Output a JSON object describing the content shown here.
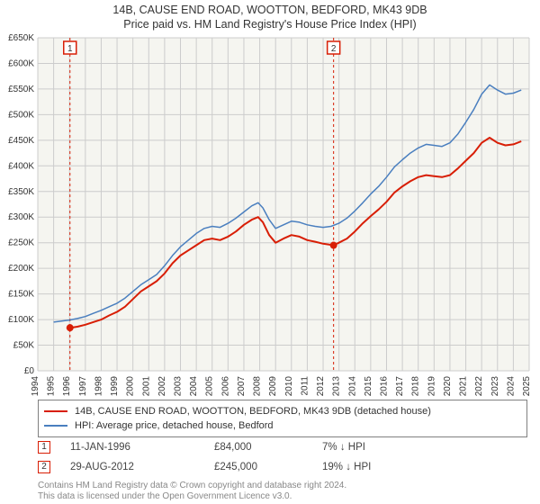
{
  "title_main": "14B, CAUSE END ROAD, WOOTTON, BEDFORD, MK43 9DB",
  "title_sub": "Price paid vs. HM Land Registry's House Price Index (HPI)",
  "chart": {
    "type": "line",
    "background_color": "#f5f5f0",
    "grid_color": "#cccccc",
    "axis_color": "#333333",
    "x_years": [
      1994,
      1995,
      1996,
      1997,
      1998,
      1999,
      2000,
      2001,
      2002,
      2003,
      2004,
      2005,
      2006,
      2007,
      2008,
      2009,
      2010,
      2011,
      2012,
      2013,
      2014,
      2015,
      2016,
      2017,
      2018,
      2019,
      2020,
      2021,
      2022,
      2023,
      2024,
      2025
    ],
    "xlim": [
      1994,
      2025
    ],
    "ylim": [
      0,
      650000
    ],
    "ytick_step": 50000,
    "ytick_labels": [
      "£0",
      "£50K",
      "£100K",
      "£150K",
      "£200K",
      "£250K",
      "£300K",
      "£350K",
      "£400K",
      "£450K",
      "£500K",
      "£550K",
      "£600K",
      "£650K"
    ],
    "title_fontsize": 12.5,
    "tick_fontsize": 10,
    "series": [
      {
        "name": "14B, CAUSE END ROAD, WOOTTON, BEDFORD, MK43 9DB (detached house)",
        "color": "#d81e05",
        "line_width": 2,
        "points": [
          [
            1996.03,
            84000
          ],
          [
            1996.5,
            86000
          ],
          [
            1997,
            90000
          ],
          [
            1997.5,
            95000
          ],
          [
            1998,
            100000
          ],
          [
            1998.5,
            108000
          ],
          [
            1999,
            115000
          ],
          [
            1999.5,
            125000
          ],
          [
            2000,
            140000
          ],
          [
            2000.5,
            155000
          ],
          [
            2001,
            165000
          ],
          [
            2001.5,
            175000
          ],
          [
            2002,
            190000
          ],
          [
            2002.5,
            210000
          ],
          [
            2003,
            225000
          ],
          [
            2003.5,
            235000
          ],
          [
            2004,
            245000
          ],
          [
            2004.5,
            255000
          ],
          [
            2005,
            258000
          ],
          [
            2005.5,
            255000
          ],
          [
            2006,
            262000
          ],
          [
            2006.5,
            272000
          ],
          [
            2007,
            285000
          ],
          [
            2007.5,
            295000
          ],
          [
            2007.9,
            300000
          ],
          [
            2008.2,
            290000
          ],
          [
            2008.6,
            265000
          ],
          [
            2009,
            250000
          ],
          [
            2009.5,
            258000
          ],
          [
            2010,
            265000
          ],
          [
            2010.5,
            262000
          ],
          [
            2011,
            255000
          ],
          [
            2011.5,
            252000
          ],
          [
            2012,
            248000
          ],
          [
            2012.66,
            245000
          ],
          [
            2013,
            250000
          ],
          [
            2013.5,
            258000
          ],
          [
            2014,
            272000
          ],
          [
            2014.5,
            288000
          ],
          [
            2015,
            302000
          ],
          [
            2015.5,
            315000
          ],
          [
            2016,
            330000
          ],
          [
            2016.5,
            348000
          ],
          [
            2017,
            360000
          ],
          [
            2017.5,
            370000
          ],
          [
            2018,
            378000
          ],
          [
            2018.5,
            382000
          ],
          [
            2019,
            380000
          ],
          [
            2019.5,
            378000
          ],
          [
            2020,
            382000
          ],
          [
            2020.5,
            395000
          ],
          [
            2021,
            410000
          ],
          [
            2021.5,
            425000
          ],
          [
            2022,
            445000
          ],
          [
            2022.5,
            455000
          ],
          [
            2023,
            445000
          ],
          [
            2023.5,
            440000
          ],
          [
            2024,
            442000
          ],
          [
            2024.5,
            448000
          ]
        ]
      },
      {
        "name": "HPI: Average price, detached house, Bedford",
        "color": "#4a7fbf",
        "line_width": 1.5,
        "points": [
          [
            1995,
            95000
          ],
          [
            1995.5,
            97000
          ],
          [
            1996,
            99000
          ],
          [
            1996.5,
            102000
          ],
          [
            1997,
            106000
          ],
          [
            1997.5,
            112000
          ],
          [
            1998,
            118000
          ],
          [
            1998.5,
            125000
          ],
          [
            1999,
            132000
          ],
          [
            1999.5,
            142000
          ],
          [
            2000,
            155000
          ],
          [
            2000.5,
            168000
          ],
          [
            2001,
            178000
          ],
          [
            2001.5,
            188000
          ],
          [
            2002,
            205000
          ],
          [
            2002.5,
            225000
          ],
          [
            2003,
            242000
          ],
          [
            2003.5,
            255000
          ],
          [
            2004,
            268000
          ],
          [
            2004.5,
            278000
          ],
          [
            2005,
            282000
          ],
          [
            2005.5,
            280000
          ],
          [
            2006,
            288000
          ],
          [
            2006.5,
            298000
          ],
          [
            2007,
            310000
          ],
          [
            2007.5,
            322000
          ],
          [
            2007.9,
            328000
          ],
          [
            2008.2,
            318000
          ],
          [
            2008.6,
            295000
          ],
          [
            2009,
            278000
          ],
          [
            2009.5,
            285000
          ],
          [
            2010,
            292000
          ],
          [
            2010.5,
            290000
          ],
          [
            2011,
            285000
          ],
          [
            2011.5,
            282000
          ],
          [
            2012,
            280000
          ],
          [
            2012.5,
            282000
          ],
          [
            2013,
            288000
          ],
          [
            2013.5,
            298000
          ],
          [
            2014,
            312000
          ],
          [
            2014.5,
            328000
          ],
          [
            2015,
            345000
          ],
          [
            2015.5,
            360000
          ],
          [
            2016,
            378000
          ],
          [
            2016.5,
            398000
          ],
          [
            2017,
            412000
          ],
          [
            2017.5,
            425000
          ],
          [
            2018,
            435000
          ],
          [
            2018.5,
            442000
          ],
          [
            2019,
            440000
          ],
          [
            2019.5,
            438000
          ],
          [
            2020,
            445000
          ],
          [
            2020.5,
            462000
          ],
          [
            2021,
            485000
          ],
          [
            2021.5,
            510000
          ],
          [
            2022,
            540000
          ],
          [
            2022.5,
            558000
          ],
          [
            2023,
            548000
          ],
          [
            2023.5,
            540000
          ],
          [
            2024,
            542000
          ],
          [
            2024.5,
            548000
          ]
        ]
      }
    ],
    "sale_markers": [
      {
        "label": "1",
        "year": 1996.03,
        "price": 84000,
        "color": "#d81e05"
      },
      {
        "label": "2",
        "year": 2012.66,
        "price": 245000,
        "color": "#d81e05"
      }
    ]
  },
  "legend": {
    "border_color": "#808080",
    "fontsize": 11,
    "items": [
      {
        "color": "#d81e05",
        "label": "14B, CAUSE END ROAD, WOOTTON, BEDFORD, MK43 9DB (detached house)"
      },
      {
        "color": "#4a7fbf",
        "label": "HPI: Average price, detached house, Bedford"
      }
    ]
  },
  "sales": [
    {
      "num": "1",
      "date": "11-JAN-1996",
      "price": "£84,000",
      "diff": "7% ↓ HPI",
      "marker_color": "#d81e05"
    },
    {
      "num": "2",
      "date": "29-AUG-2012",
      "price": "£245,000",
      "diff": "19% ↓ HPI",
      "marker_color": "#d81e05"
    }
  ],
  "copyright_line1": "Contains HM Land Registry data © Crown copyright and database right 2024.",
  "copyright_line2": "This data is licensed under the Open Government Licence v3.0."
}
